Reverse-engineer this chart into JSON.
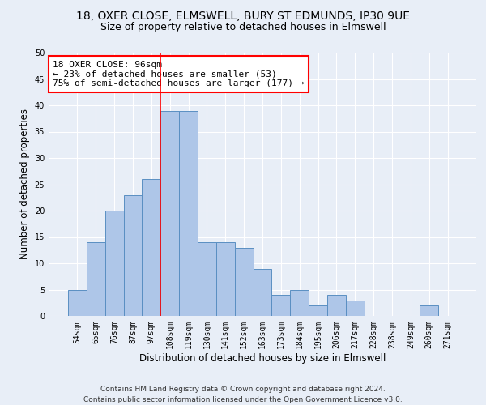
{
  "title_line1": "18, OXER CLOSE, ELMSWELL, BURY ST EDMUNDS, IP30 9UE",
  "title_line2": "Size of property relative to detached houses in Elmswell",
  "xlabel": "Distribution of detached houses by size in Elmswell",
  "ylabel": "Number of detached properties",
  "bar_labels": [
    "54sqm",
    "65sqm",
    "76sqm",
    "87sqm",
    "97sqm",
    "108sqm",
    "119sqm",
    "130sqm",
    "141sqm",
    "152sqm",
    "163sqm",
    "173sqm",
    "184sqm",
    "195sqm",
    "206sqm",
    "217sqm",
    "228sqm",
    "238sqm",
    "249sqm",
    "260sqm",
    "271sqm"
  ],
  "bar_values": [
    5,
    14,
    20,
    23,
    26,
    39,
    39,
    14,
    14,
    13,
    9,
    4,
    5,
    2,
    4,
    3,
    0,
    0,
    0,
    2,
    0
  ],
  "bar_color": "#aec6e8",
  "bar_edge_color": "#5a8fc2",
  "annotation_text": "18 OXER CLOSE: 96sqm\n← 23% of detached houses are smaller (53)\n75% of semi-detached houses are larger (177) →",
  "annotation_box_color": "white",
  "annotation_box_edge_color": "red",
  "vline_x": 4.5,
  "vline_color": "red",
  "ylim": [
    0,
    50
  ],
  "yticks": [
    0,
    5,
    10,
    15,
    20,
    25,
    30,
    35,
    40,
    45,
    50
  ],
  "footer_line1": "Contains HM Land Registry data © Crown copyright and database right 2024.",
  "footer_line2": "Contains public sector information licensed under the Open Government Licence v3.0.",
  "bg_color": "#e8eef7",
  "grid_color": "white",
  "title_fontsize": 10,
  "subtitle_fontsize": 9,
  "axis_label_fontsize": 8.5,
  "tick_fontsize": 7,
  "footer_fontsize": 6.5,
  "annotation_fontsize": 8
}
